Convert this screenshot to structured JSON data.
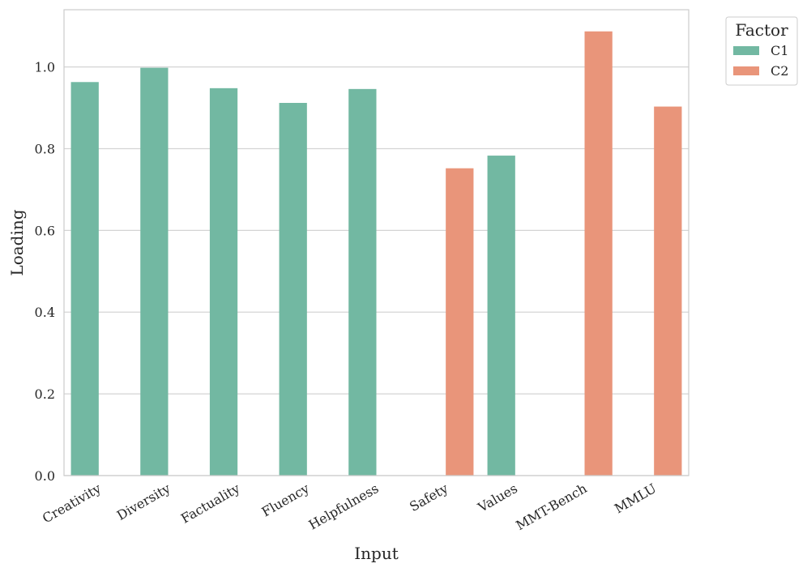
{
  "chart_data": {
    "type": "bar",
    "xlabel": "Input",
    "ylabel": "Loading",
    "categories": [
      "Creativity",
      "Diversity",
      "Factuality",
      "Fluency",
      "Helpfulness",
      "Safety",
      "Values",
      "MMT-Bench",
      "MMLU"
    ],
    "series": [
      {
        "name": "C1",
        "color": "#72b8a2",
        "values": [
          0.963,
          0.998,
          0.948,
          0.912,
          0.946,
          null,
          0.783,
          null,
          null
        ]
      },
      {
        "name": "C2",
        "color": "#e9957a",
        "values": [
          null,
          null,
          null,
          null,
          null,
          0.752,
          null,
          1.087,
          0.903
        ]
      }
    ],
    "ylim": [
      0,
      1.14
    ],
    "yticks": [
      0.0,
      0.2,
      0.4,
      0.6,
      0.8,
      1.0
    ],
    "ytick_labels": [
      "0.0",
      "0.2",
      "0.4",
      "0.6",
      "0.8",
      "1.0"
    ],
    "grid": true,
    "legend": {
      "title": "Factor",
      "placement": "outside-top-right"
    }
  }
}
